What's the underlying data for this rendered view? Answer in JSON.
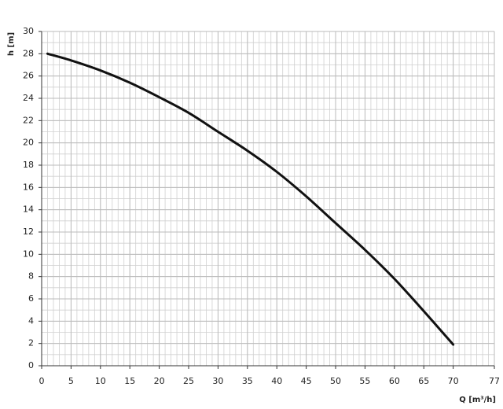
{
  "chart_data": {
    "type": "line",
    "xlabel": "Q [m³/h]",
    "ylabel": "h [m]",
    "x": [
      1,
      5,
      10,
      15,
      20,
      25,
      30,
      35,
      40,
      45,
      50,
      55,
      60,
      65,
      70
    ],
    "series": [
      {
        "color": "#111111",
        "values": [
          28.0,
          27.4,
          26.5,
          25.4,
          24.1,
          22.7,
          21.0,
          19.3,
          17.4,
          15.2,
          12.8,
          10.4,
          7.8,
          4.9,
          1.9
        ]
      }
    ],
    "xlim": [
      0,
      77
    ],
    "xticks": [
      0,
      5,
      10,
      15,
      20,
      25,
      30,
      35,
      40,
      45,
      50,
      55,
      60,
      65,
      70,
      77
    ],
    "ylim": [
      0,
      30
    ],
    "yticks": [
      0,
      2,
      4,
      6,
      8,
      10,
      12,
      14,
      16,
      18,
      20,
      22,
      24,
      26,
      28,
      30
    ],
    "grid": true,
    "xminor": 1,
    "yminor": 1
  }
}
